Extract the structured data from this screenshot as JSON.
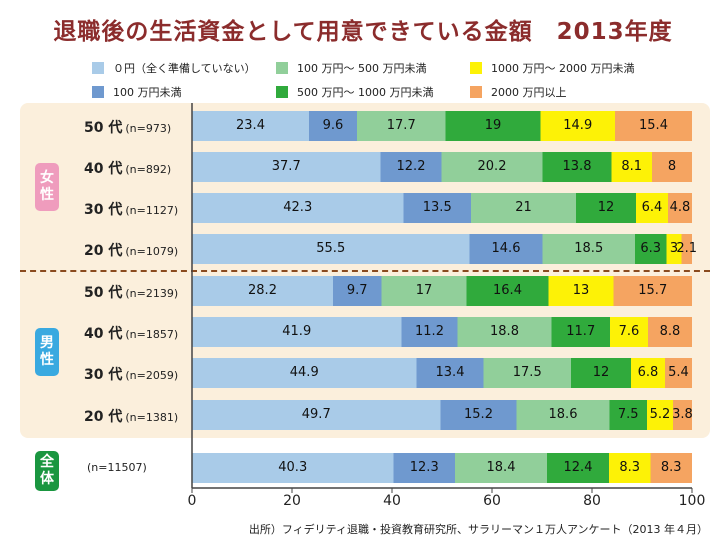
{
  "chart_data": {
    "type": "bar",
    "orientation": "horizontal",
    "stacked": true,
    "title": "退職後の生活資金として用意できている金額　2013年度",
    "legend": [
      {
        "label": "０円（全く準備していない）",
        "color": "#a9cbe8"
      },
      {
        "label": "100 万円～ 500 万円未満",
        "color": "#91cf9a"
      },
      {
        "label": "1000 万円～ 2000 万円未満",
        "color": "#fdf206"
      },
      {
        "label": "100 万円未満",
        "color": "#6f99cf"
      },
      {
        "label": "500 万円～ 1000 万円未満",
        "color": "#30aa3c"
      },
      {
        "label": "2000 万円以上",
        "color": "#f5a461"
      }
    ],
    "series_order": [
      "０円（全く準備していない）",
      "100 万円未満",
      "100 万円～ 500 万円未満",
      "500 万円～ 1000 万円未満",
      "1000 万円～ 2000 万円未満",
      "2000 万円以上"
    ],
    "series_colors": [
      "#a9cbe8",
      "#6f99cf",
      "#91cf9a",
      "#30aa3c",
      "#fdf206",
      "#f5a461"
    ],
    "groups": [
      {
        "name": "女性",
        "chars": [
          "女",
          "性"
        ],
        "color": "#ef9cbd",
        "rows": [
          {
            "age": "50 代",
            "n": "(n=973)",
            "values": [
              23.4,
              9.6,
              17.7,
              19,
              14.9,
              15.4
            ]
          },
          {
            "age": "40 代",
            "n": "(n=892)",
            "values": [
              37.7,
              12.2,
              20.2,
              13.8,
              8.1,
              8
            ]
          },
          {
            "age": "30 代",
            "n": "(n=1127)",
            "values": [
              42.3,
              13.5,
              21,
              12,
              6.4,
              4.8
            ]
          },
          {
            "age": "20 代",
            "n": "(n=1079)",
            "values": [
              55.5,
              14.6,
              18.5,
              6.3,
              3,
              2.1
            ]
          }
        ]
      },
      {
        "name": "男性",
        "chars": [
          "男",
          "性"
        ],
        "color": "#39a9e0",
        "rows": [
          {
            "age": "50 代",
            "n": "(n=2139)",
            "values": [
              28.2,
              9.7,
              17,
              16.4,
              13,
              15.7
            ]
          },
          {
            "age": "40 代",
            "n": "(n=1857)",
            "values": [
              41.9,
              11.2,
              18.8,
              11.7,
              7.6,
              8.8
            ]
          },
          {
            "age": "30 代",
            "n": "(n=2059)",
            "values": [
              44.9,
              13.4,
              17.5,
              12,
              6.8,
              5.4
            ]
          },
          {
            "age": "20 代",
            "n": "(n=1381)",
            "values": [
              49.7,
              15.2,
              18.6,
              7.5,
              5.2,
              3.8
            ]
          }
        ]
      },
      {
        "name": "全体",
        "chars": [
          "全",
          "体"
        ],
        "color": "#1a9640",
        "rows": [
          {
            "age": "",
            "n": "(n=11507)",
            "values": [
              40.3,
              12.3,
              18.4,
              12.4,
              8.3,
              8.3
            ]
          }
        ]
      }
    ],
    "x_ticks": [
      0,
      20,
      40,
      60,
      80,
      100
    ],
    "xlim": [
      0,
      100
    ],
    "grid": false
  },
  "source": "出所）フィデリティ退職・投資教育研究所、サラリーマン１万人アンケート（2013 年４月）"
}
